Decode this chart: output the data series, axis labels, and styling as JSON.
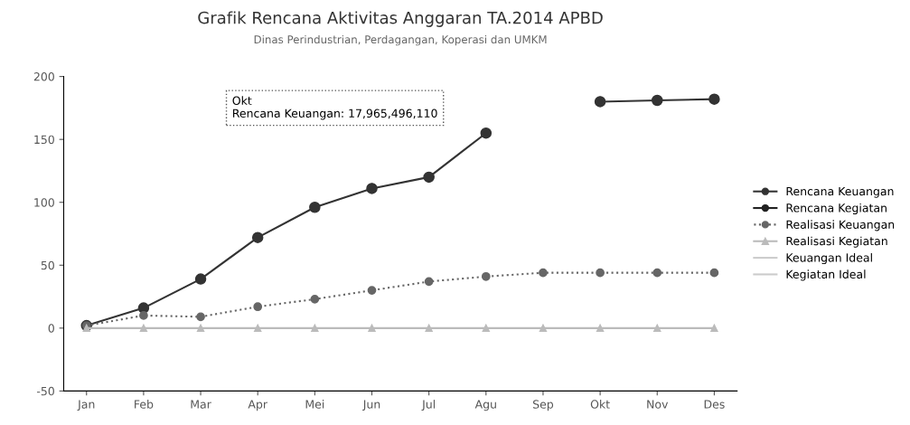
{
  "chart_data": {
    "type": "line",
    "title": "Grafik Rencana Aktivitas Anggaran TA.2014 APBD",
    "subtitle": "Dinas Perindustrian, Perdagangan, Koperasi dan UMKM",
    "categories": [
      "Jan",
      "Feb",
      "Mar",
      "Apr",
      "Mei",
      "Jun",
      "Jul",
      "Agu",
      "Sep",
      "Okt",
      "Nov",
      "Des"
    ],
    "series": [
      {
        "name": "Rencana Keuangan",
        "color": "#333333",
        "marker": "circle",
        "line_style": "solid",
        "values": [
          2,
          16,
          39,
          72,
          96,
          111,
          120,
          155,
          null,
          180,
          181,
          182
        ]
      },
      {
        "name": "Rencana Kegiatan",
        "color": "#222222",
        "marker": "circle",
        "line_style": "solid",
        "values": [
          null,
          null,
          null,
          null,
          null,
          null,
          null,
          null,
          null,
          null,
          null,
          null
        ]
      },
      {
        "name": "Realisasi Keuangan",
        "color": "#666666",
        "marker": "circle",
        "line_style": "dotted",
        "values": [
          2,
          10,
          9,
          17,
          23,
          30,
          37,
          41,
          44,
          44,
          44,
          44
        ]
      },
      {
        "name": "Realisasi Kegiatan",
        "color": "#bbbbbb",
        "marker": "triangle",
        "line_style": "solid",
        "values": [
          0,
          0,
          0,
          0,
          0,
          0,
          0,
          0,
          0,
          0,
          0,
          0
        ]
      },
      {
        "name": "Keuangan Ideal",
        "color": "#cccccc",
        "marker": "none",
        "line_style": "solid",
        "values": [
          null,
          null,
          null,
          null,
          null,
          null,
          null,
          null,
          null,
          null,
          null,
          null
        ]
      },
      {
        "name": "Kegiatan Ideal",
        "color": "#cccccc",
        "marker": "none",
        "line_style": "solid",
        "values": [
          null,
          null,
          null,
          null,
          null,
          null,
          null,
          null,
          null,
          null,
          null,
          null
        ]
      }
    ],
    "ylim": [
      -50,
      200
    ],
    "yticks": [
      -50,
      0,
      50,
      100,
      150,
      200
    ],
    "grid": false,
    "legend": "right",
    "annotations": [
      "Okt\nRencana Keuangan: 17,965,496,110"
    ]
  }
}
